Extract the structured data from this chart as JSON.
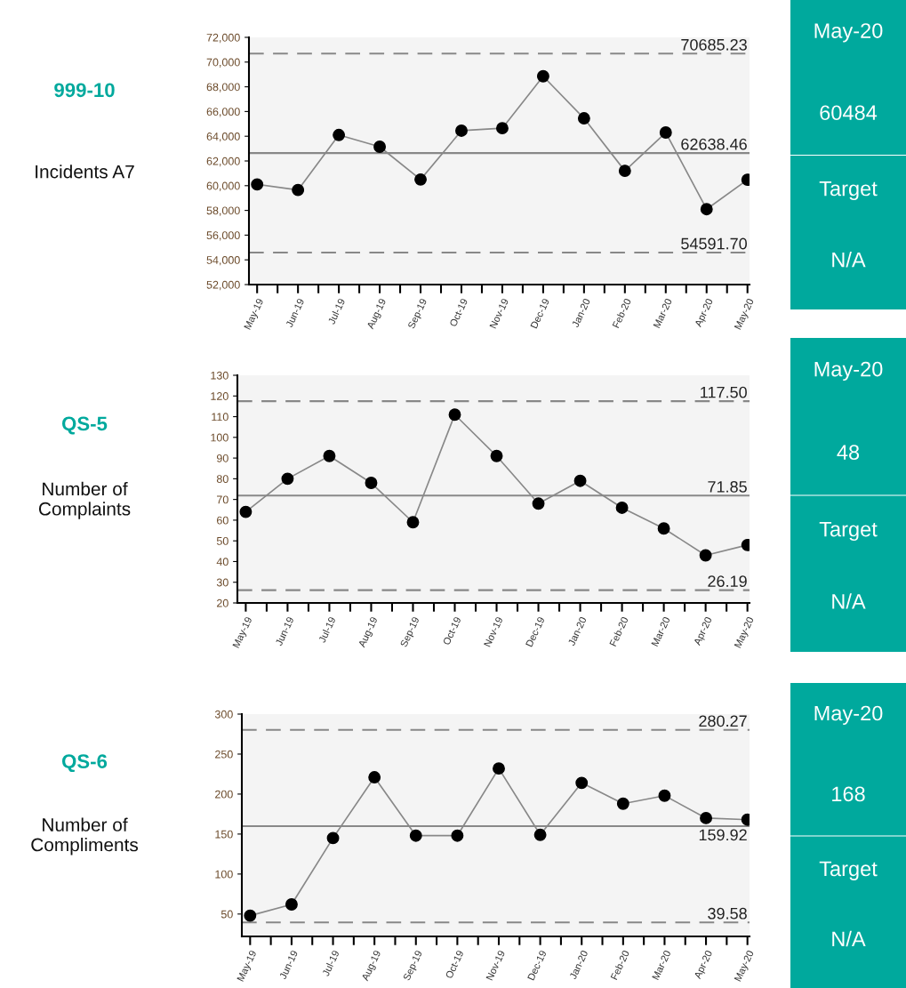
{
  "chart_data": [
    {
      "type": "line",
      "title": "999-10",
      "subtitle": "Incidents A7",
      "categories": [
        "May-19",
        "Jun-19",
        "Jul-19",
        "Aug-19",
        "Sep-19",
        "Oct-19",
        "Nov-19",
        "Dec-19",
        "Jan-20",
        "Feb-20",
        "Mar-20",
        "Apr-20",
        "May-20"
      ],
      "series": [
        {
          "color": "#000000",
          "values": [
            60100,
            59650,
            64100,
            63150,
            60500,
            64450,
            64650,
            68850,
            65450,
            61200,
            64300,
            58100,
            60484
          ]
        }
      ],
      "ylim": [
        52000,
        72000
      ],
      "yticks": [
        {
          "value": 52000,
          "label": "52,000"
        },
        {
          "value": 54000,
          "label": "54,000"
        },
        {
          "value": 56000,
          "label": "56,000"
        },
        {
          "value": 58000,
          "label": "58,000"
        },
        {
          "value": 60000,
          "label": "60,000"
        },
        {
          "value": 62000,
          "label": "62,000"
        },
        {
          "value": 64000,
          "label": "64,000"
        },
        {
          "value": 66000,
          "label": "66,000"
        },
        {
          "value": 68000,
          "label": "68,000"
        },
        {
          "value": 70000,
          "label": "70,000"
        },
        {
          "value": 72000,
          "label": "72,000"
        }
      ],
      "ref_lines": [
        {
          "axis": "y",
          "value": 70685.23,
          "label": "70685.23",
          "color": "#888888",
          "line_style": "dashed"
        },
        {
          "axis": "y",
          "value": 62638.46,
          "label": "62638.46",
          "color": "#888888",
          "line_style": "solid"
        },
        {
          "axis": "y",
          "value": 54591.7,
          "label": "54591.70",
          "color": "#888888",
          "line_style": "dashed"
        }
      ],
      "marker": "circle",
      "grid": false,
      "legend": false
    },
    {
      "type": "other",
      "annotations": [
        "May-20",
        "60484",
        "Target",
        "N/A"
      ]
    },
    {
      "type": "line",
      "title": "QS-5",
      "subtitle": "Number of\nComplaints",
      "categories": [
        "May-19",
        "Jun-19",
        "Jul-19",
        "Aug-19",
        "Sep-19",
        "Oct-19",
        "Nov-19",
        "Dec-19",
        "Jan-20",
        "Feb-20",
        "Mar-20",
        "Apr-20",
        "May-20"
      ],
      "series": [
        {
          "color": "#000000",
          "values": [
            64,
            80,
            91,
            78,
            59,
            111,
            91,
            68,
            79,
            66,
            56,
            43,
            48
          ]
        }
      ],
      "ylim": [
        20,
        130
      ],
      "yticks": [
        20,
        30,
        40,
        50,
        60,
        70,
        80,
        90,
        100,
        110,
        120,
        130
      ],
      "ref_lines": [
        {
          "axis": "y",
          "value": 117.5,
          "label": "117.50",
          "color": "#888888",
          "line_style": "dashed"
        },
        {
          "axis": "y",
          "value": 71.85,
          "label": "71.85",
          "color": "#888888",
          "line_style": "solid"
        },
        {
          "axis": "y",
          "value": 26.19,
          "label": "26.19",
          "color": "#888888",
          "line_style": "dashed"
        }
      ],
      "marker": "circle",
      "grid": false,
      "legend": false
    },
    {
      "type": "other",
      "annotations": [
        "May-20",
        "48",
        "Target",
        "N/A"
      ]
    },
    {
      "type": "line",
      "title": "QS-6",
      "subtitle": "Number of\nCompliments",
      "categories": [
        "May-19",
        "Jun-19",
        "Jul-19",
        "Aug-19",
        "Sep-19",
        "Oct-19",
        "Nov-19",
        "Dec-19",
        "Jan-20",
        "Feb-20",
        "Mar-20",
        "Apr-20",
        "May-20"
      ],
      "series": [
        {
          "color": "#000000",
          "values": [
            48,
            62,
            145,
            221,
            148,
            148,
            232,
            149,
            214,
            188,
            198,
            170,
            168
          ]
        }
      ],
      "ylim": [
        22,
        300
      ],
      "yticks": [
        50,
        100,
        150,
        200,
        250,
        300
      ],
      "ref_lines": [
        {
          "axis": "y",
          "value": 280.27,
          "label": "280.27",
          "color": "#888888",
          "line_style": "dashed"
        },
        {
          "axis": "y",
          "value": 159.92,
          "label": "159.92",
          "color": "#888888",
          "line_style": "solid"
        },
        {
          "axis": "y",
          "value": 39.58,
          "label": "39.58",
          "color": "#888888",
          "line_style": "dashed"
        }
      ],
      "marker": "circle",
      "grid": false,
      "legend": false
    },
    {
      "type": "other",
      "annotations": [
        "May-20",
        "168",
        "Target",
        "N/A"
      ]
    }
  ]
}
